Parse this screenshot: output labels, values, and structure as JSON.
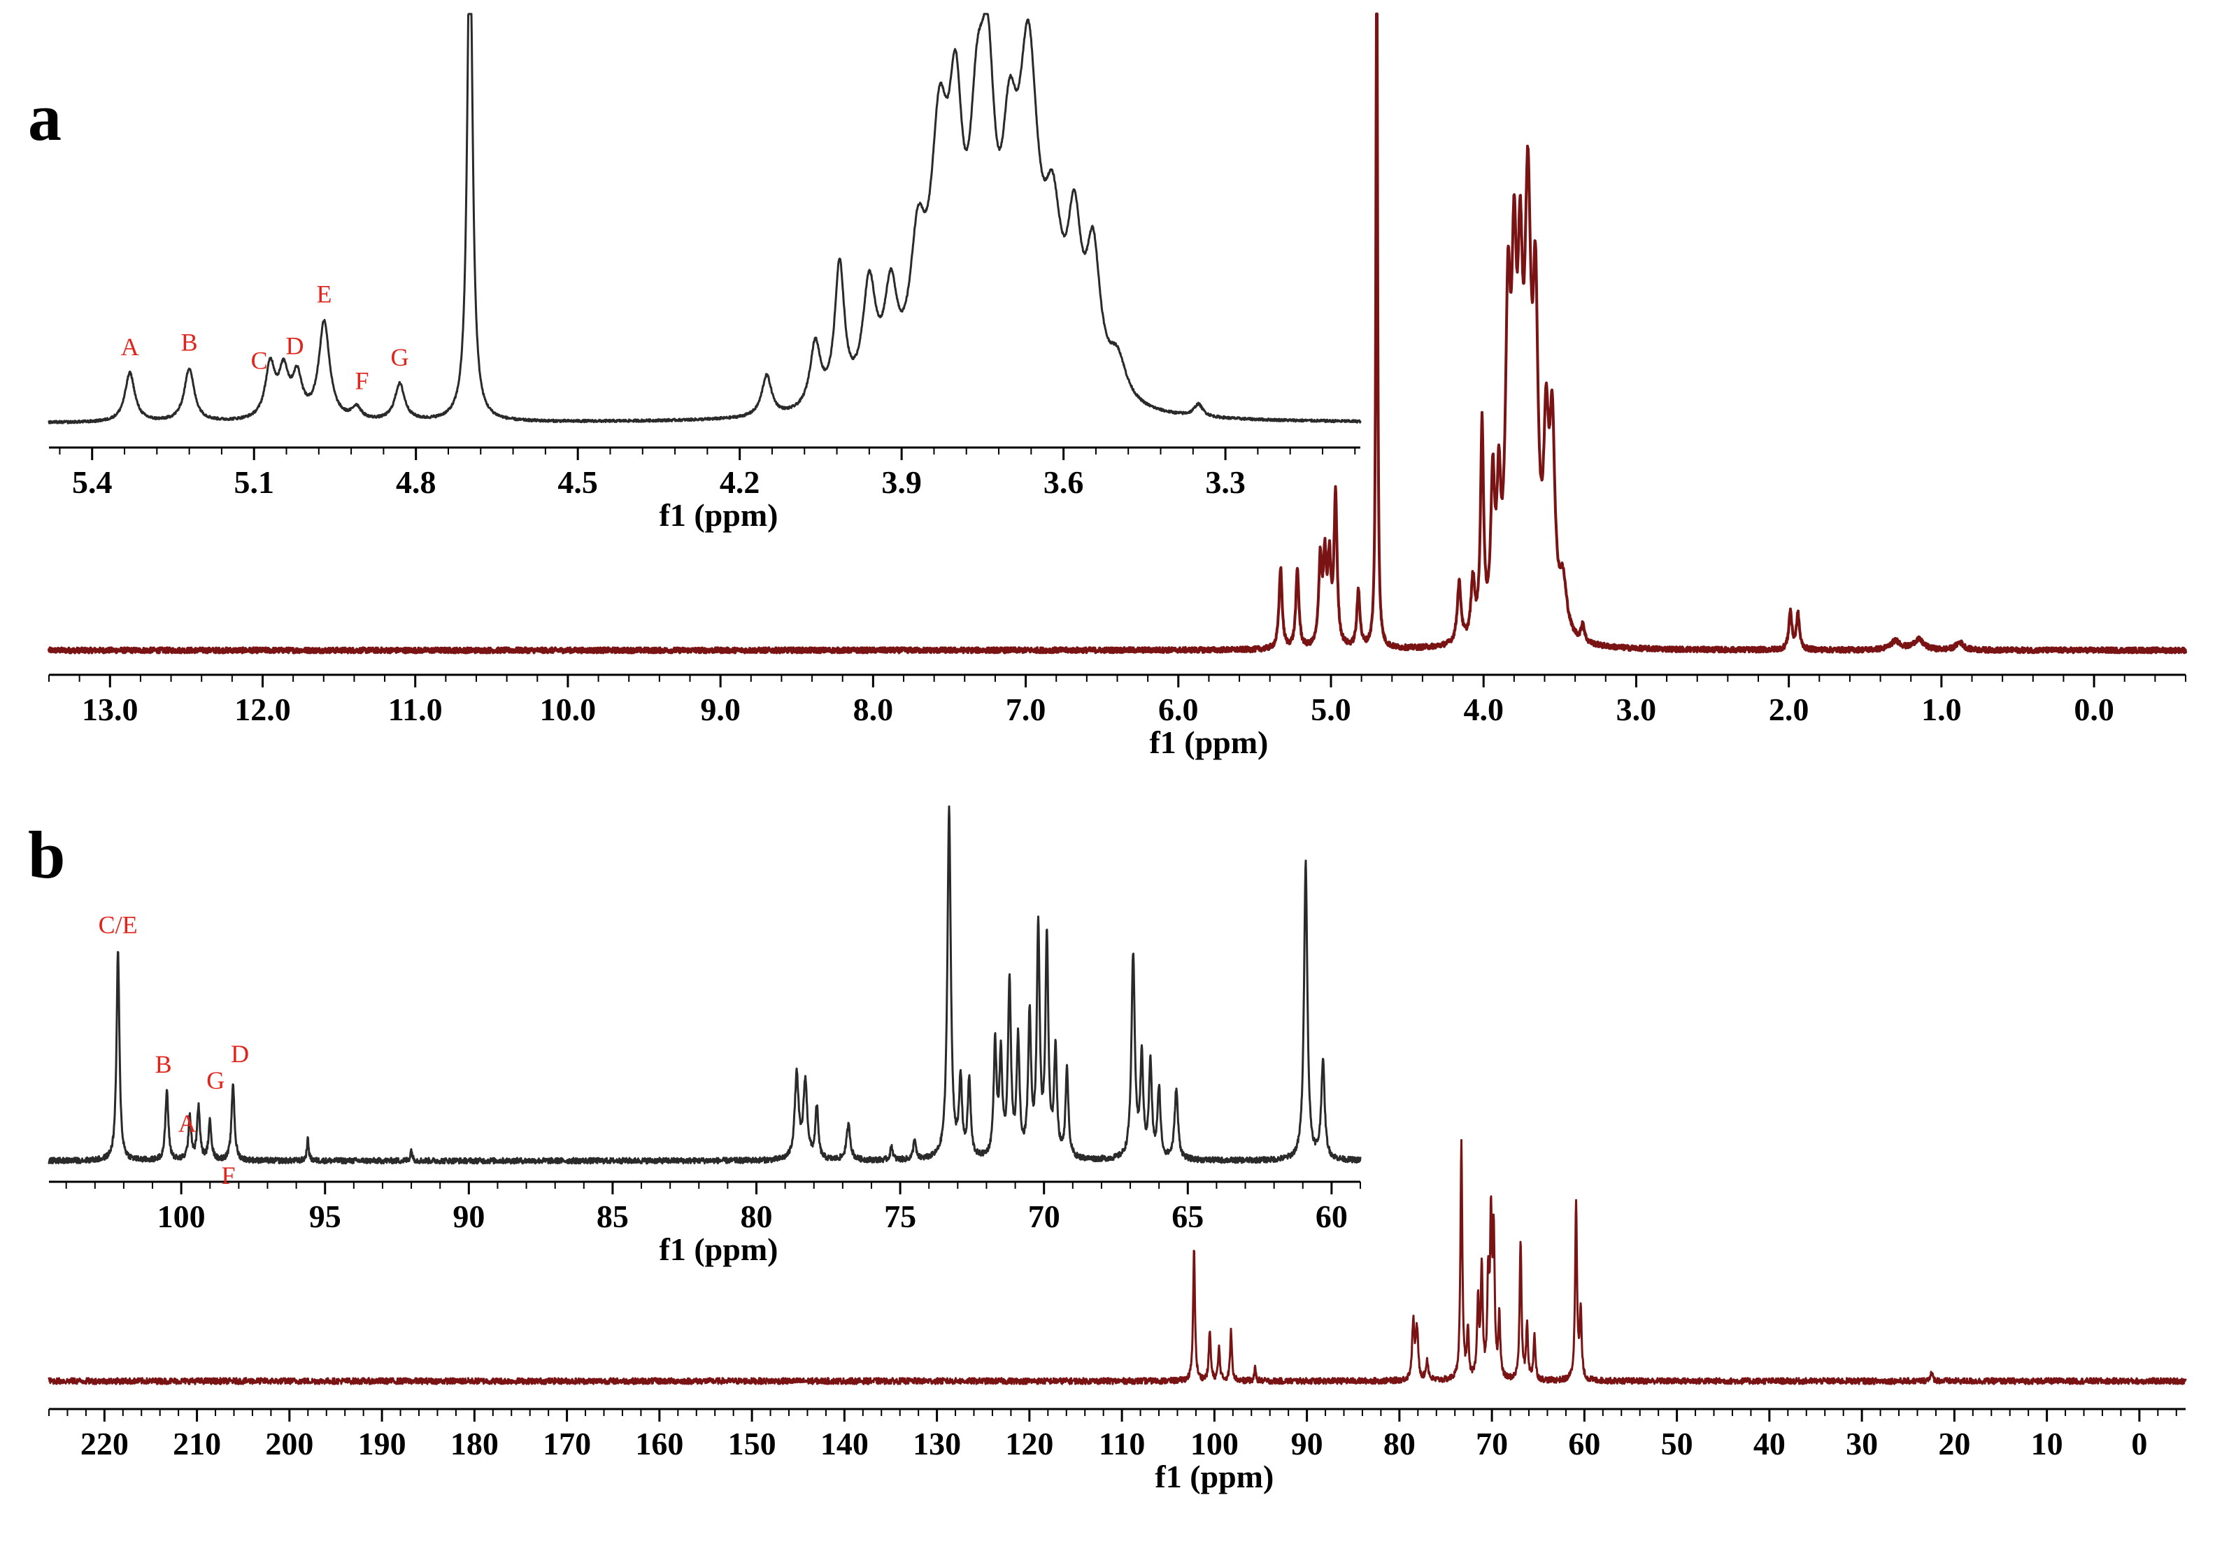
{
  "colors": {
    "main_trace": "#7a1414",
    "inset_trace": "#2a2a2a",
    "peak_label": "#e0241b",
    "axis": "#000000"
  },
  "chart_data": [
    {
      "id": "a-main",
      "type": "line",
      "panel_label": "a",
      "xlabel": "f1 (ppm)",
      "xlim": [
        13.4,
        -0.6
      ],
      "x_reversed": true,
      "xticks": [
        13.0,
        12.0,
        11.0,
        10.0,
        9.0,
        8.0,
        7.0,
        6.0,
        5.0,
        4.0,
        3.0,
        2.0,
        1.0,
        0.0
      ],
      "tick_labels": [
        "13.0",
        "12.0",
        "11.0",
        "10.0",
        "9.0",
        "8.0",
        "7.0",
        "6.0",
        "5.0",
        "4.0",
        "3.0",
        "2.0",
        "1.0",
        "0.0"
      ],
      "baseline_noise": 0.004,
      "ymax": 1.0,
      "peaks": [
        {
          "x": 5.33,
          "h": 0.128,
          "w": 0.012
        },
        {
          "x": 5.22,
          "h": 0.124,
          "w": 0.012
        },
        {
          "x": 5.07,
          "h": 0.135,
          "w": 0.012
        },
        {
          "x": 5.04,
          "h": 0.128,
          "w": 0.012
        },
        {
          "x": 5.01,
          "h": 0.125,
          "w": 0.012
        },
        {
          "x": 4.97,
          "h": 0.238,
          "w": 0.012
        },
        {
          "x": 4.82,
          "h": 0.09,
          "w": 0.012
        },
        {
          "x": 4.7,
          "h": 1.25,
          "w": 0.006
        },
        {
          "x": 4.16,
          "h": 0.095,
          "w": 0.015
        },
        {
          "x": 4.07,
          "h": 0.09,
          "w": 0.015
        },
        {
          "x": 4.01,
          "h": 0.33,
          "w": 0.012
        },
        {
          "x": 3.94,
          "h": 0.23,
          "w": 0.015
        },
        {
          "x": 3.9,
          "h": 0.2,
          "w": 0.015
        },
        {
          "x": 3.84,
          "h": 0.46,
          "w": 0.02
        },
        {
          "x": 3.8,
          "h": 0.47,
          "w": 0.02
        },
        {
          "x": 3.76,
          "h": 0.44,
          "w": 0.02
        },
        {
          "x": 3.71,
          "h": 0.62,
          "w": 0.025
        },
        {
          "x": 3.66,
          "h": 0.45,
          "w": 0.02
        },
        {
          "x": 3.59,
          "h": 0.28,
          "w": 0.02
        },
        {
          "x": 3.55,
          "h": 0.3,
          "w": 0.02
        },
        {
          "x": 3.48,
          "h": 0.08,
          "w": 0.03
        },
        {
          "x": 3.35,
          "h": 0.028,
          "w": 0.012
        },
        {
          "x": 1.99,
          "h": 0.06,
          "w": 0.012
        },
        {
          "x": 1.94,
          "h": 0.055,
          "w": 0.012
        },
        {
          "x": 1.3,
          "h": 0.014,
          "w": 0.04
        },
        {
          "x": 1.15,
          "h": 0.016,
          "w": 0.04
        },
        {
          "x": 0.88,
          "h": 0.012,
          "w": 0.03
        }
      ]
    },
    {
      "id": "a-inset",
      "type": "line",
      "xlabel": "f1 (ppm)",
      "xlim": [
        5.48,
        3.05
      ],
      "x_reversed": true,
      "xticks": [
        5.4,
        5.1,
        4.8,
        4.5,
        4.2,
        3.9,
        3.6,
        3.3
      ],
      "tick_labels": [
        "5.4",
        "5.1",
        "4.8",
        "4.5",
        "4.2",
        "3.9",
        "3.6",
        "3.3"
      ],
      "baseline_noise": 0.003,
      "ymax": 1.0,
      "peaks": [
        {
          "x": 5.33,
          "h": 0.12,
          "w": 0.011
        },
        {
          "x": 5.22,
          "h": 0.13,
          "w": 0.011
        },
        {
          "x": 5.07,
          "h": 0.13,
          "w": 0.011
        },
        {
          "x": 5.045,
          "h": 0.11,
          "w": 0.011
        },
        {
          "x": 5.02,
          "h": 0.1,
          "w": 0.011
        },
        {
          "x": 4.97,
          "h": 0.24,
          "w": 0.012
        },
        {
          "x": 4.91,
          "h": 0.03,
          "w": 0.01
        },
        {
          "x": 4.83,
          "h": 0.09,
          "w": 0.011
        },
        {
          "x": 4.7,
          "h": 1.25,
          "w": 0.006
        },
        {
          "x": 4.15,
          "h": 0.1,
          "w": 0.011
        },
        {
          "x": 4.06,
          "h": 0.16,
          "w": 0.012
        },
        {
          "x": 4.015,
          "h": 0.34,
          "w": 0.011
        },
        {
          "x": 3.96,
          "h": 0.28,
          "w": 0.015
        },
        {
          "x": 3.92,
          "h": 0.24,
          "w": 0.015
        },
        {
          "x": 3.87,
          "h": 0.32,
          "w": 0.018
        },
        {
          "x": 3.83,
          "h": 0.56,
          "w": 0.02
        },
        {
          "x": 3.8,
          "h": 0.55,
          "w": 0.016
        },
        {
          "x": 3.76,
          "h": 0.5,
          "w": 0.018
        },
        {
          "x": 3.74,
          "h": 0.55,
          "w": 0.016
        },
        {
          "x": 3.7,
          "h": 0.45,
          "w": 0.018
        },
        {
          "x": 3.665,
          "h": 0.75,
          "w": 0.022
        },
        {
          "x": 3.62,
          "h": 0.35,
          "w": 0.02
        },
        {
          "x": 3.58,
          "h": 0.36,
          "w": 0.016
        },
        {
          "x": 3.545,
          "h": 0.33,
          "w": 0.016
        },
        {
          "x": 3.5,
          "h": 0.1,
          "w": 0.02
        },
        {
          "x": 3.35,
          "h": 0.03,
          "w": 0.01
        }
      ],
      "annotations": [
        {
          "text": "A",
          "x": 5.33
        },
        {
          "text": "B",
          "x": 5.22
        },
        {
          "text": "C",
          "x": 5.08
        },
        {
          "text": "D",
          "x": 5.04
        },
        {
          "text": "E",
          "x": 4.97
        },
        {
          "text": "F",
          "x": 4.9
        },
        {
          "text": "G",
          "x": 4.83
        }
      ]
    },
    {
      "id": "b-main",
      "type": "line",
      "panel_label": "b",
      "xlabel": "f1 (ppm)",
      "xlim": [
        226,
        -5
      ],
      "x_reversed": true,
      "xticks": [
        220,
        210,
        200,
        190,
        180,
        170,
        160,
        150,
        140,
        130,
        120,
        110,
        100,
        90,
        80,
        70,
        60,
        50,
        40,
        30,
        20,
        10,
        0
      ],
      "tick_labels": [
        "220",
        "210",
        "200",
        "190",
        "180",
        "170",
        "160",
        "150",
        "140",
        "130",
        "120",
        "110",
        "100",
        "90",
        "80",
        "70",
        "60",
        "50",
        "40",
        "30",
        "20",
        "10",
        "0"
      ],
      "baseline_noise": 0.012,
      "ymax": 1.0,
      "peaks": [
        {
          "x": 102.2,
          "h": 0.53,
          "w": 0.12
        },
        {
          "x": 100.5,
          "h": 0.2,
          "w": 0.12
        },
        {
          "x": 99.5,
          "h": 0.13,
          "w": 0.12
        },
        {
          "x": 98.2,
          "h": 0.2,
          "w": 0.12
        },
        {
          "x": 95.6,
          "h": 0.05,
          "w": 0.1
        },
        {
          "x": 78.5,
          "h": 0.23,
          "w": 0.15
        },
        {
          "x": 78.1,
          "h": 0.2,
          "w": 0.15
        },
        {
          "x": 77.0,
          "h": 0.08,
          "w": 0.15
        },
        {
          "x": 73.3,
          "h": 0.95,
          "w": 0.12
        },
        {
          "x": 72.6,
          "h": 0.2,
          "w": 0.12
        },
        {
          "x": 71.5,
          "h": 0.3,
          "w": 0.12
        },
        {
          "x": 71.1,
          "h": 0.45,
          "w": 0.12
        },
        {
          "x": 70.4,
          "h": 0.38,
          "w": 0.12
        },
        {
          "x": 70.1,
          "h": 0.6,
          "w": 0.12
        },
        {
          "x": 69.8,
          "h": 0.55,
          "w": 0.12
        },
        {
          "x": 69.2,
          "h": 0.25,
          "w": 0.12
        },
        {
          "x": 66.9,
          "h": 0.56,
          "w": 0.12
        },
        {
          "x": 66.2,
          "h": 0.22,
          "w": 0.12
        },
        {
          "x": 65.4,
          "h": 0.18,
          "w": 0.12
        },
        {
          "x": 60.9,
          "h": 0.72,
          "w": 0.12
        },
        {
          "x": 60.4,
          "h": 0.27,
          "w": 0.12
        },
        {
          "x": 22.5,
          "h": 0.03,
          "w": 0.2
        }
      ]
    },
    {
      "id": "b-inset",
      "type": "line",
      "xlabel": "f1 (ppm)",
      "xlim": [
        104.6,
        59.0
      ],
      "x_reversed": true,
      "xticks": [
        100,
        95,
        90,
        85,
        80,
        75,
        70,
        65,
        60
      ],
      "tick_labels": [
        "100",
        "95",
        "90",
        "85",
        "80",
        "75",
        "70",
        "65",
        "60"
      ],
      "baseline_noise": 0.008,
      "ymax": 1.0,
      "peaks": [
        {
          "x": 102.2,
          "h": 0.6,
          "w": 0.06
        },
        {
          "x": 100.5,
          "h": 0.2,
          "w": 0.06
        },
        {
          "x": 99.7,
          "h": 0.12,
          "w": 0.06
        },
        {
          "x": 99.4,
          "h": 0.15,
          "w": 0.06
        },
        {
          "x": 99.0,
          "h": 0.11,
          "w": 0.06
        },
        {
          "x": 98.2,
          "h": 0.22,
          "w": 0.06
        },
        {
          "x": 95.6,
          "h": 0.06,
          "w": 0.04
        },
        {
          "x": 92.0,
          "h": 0.03,
          "w": 0.04
        },
        {
          "x": 78.6,
          "h": 0.24,
          "w": 0.08
        },
        {
          "x": 78.3,
          "h": 0.22,
          "w": 0.08
        },
        {
          "x": 77.9,
          "h": 0.15,
          "w": 0.06
        },
        {
          "x": 76.8,
          "h": 0.1,
          "w": 0.08
        },
        {
          "x": 75.3,
          "h": 0.04,
          "w": 0.05
        },
        {
          "x": 74.5,
          "h": 0.06,
          "w": 0.05
        },
        {
          "x": 73.3,
          "h": 1.0,
          "w": 0.07
        },
        {
          "x": 72.9,
          "h": 0.22,
          "w": 0.06
        },
        {
          "x": 72.6,
          "h": 0.22,
          "w": 0.06
        },
        {
          "x": 71.7,
          "h": 0.32,
          "w": 0.06
        },
        {
          "x": 71.5,
          "h": 0.28,
          "w": 0.06
        },
        {
          "x": 71.2,
          "h": 0.5,
          "w": 0.06
        },
        {
          "x": 70.9,
          "h": 0.33,
          "w": 0.06
        },
        {
          "x": 70.5,
          "h": 0.4,
          "w": 0.06
        },
        {
          "x": 70.2,
          "h": 0.65,
          "w": 0.06
        },
        {
          "x": 69.9,
          "h": 0.62,
          "w": 0.06
        },
        {
          "x": 69.6,
          "h": 0.3,
          "w": 0.06
        },
        {
          "x": 69.2,
          "h": 0.25,
          "w": 0.06
        },
        {
          "x": 66.9,
          "h": 0.58,
          "w": 0.07
        },
        {
          "x": 66.6,
          "h": 0.28,
          "w": 0.06
        },
        {
          "x": 66.3,
          "h": 0.27,
          "w": 0.06
        },
        {
          "x": 66.0,
          "h": 0.2,
          "w": 0.06
        },
        {
          "x": 65.4,
          "h": 0.2,
          "w": 0.07
        },
        {
          "x": 60.9,
          "h": 0.85,
          "w": 0.07
        },
        {
          "x": 60.3,
          "h": 0.28,
          "w": 0.07
        }
      ],
      "annotations": [
        {
          "text": "C/E",
          "x": 102.2
        },
        {
          "text": "B",
          "x": 100.5
        },
        {
          "text": "A",
          "x": 99.5
        },
        {
          "text": "G",
          "x": 99.0
        },
        {
          "text": "F",
          "x": 98.8
        },
        {
          "text": "D",
          "x": 98.2
        }
      ]
    }
  ]
}
